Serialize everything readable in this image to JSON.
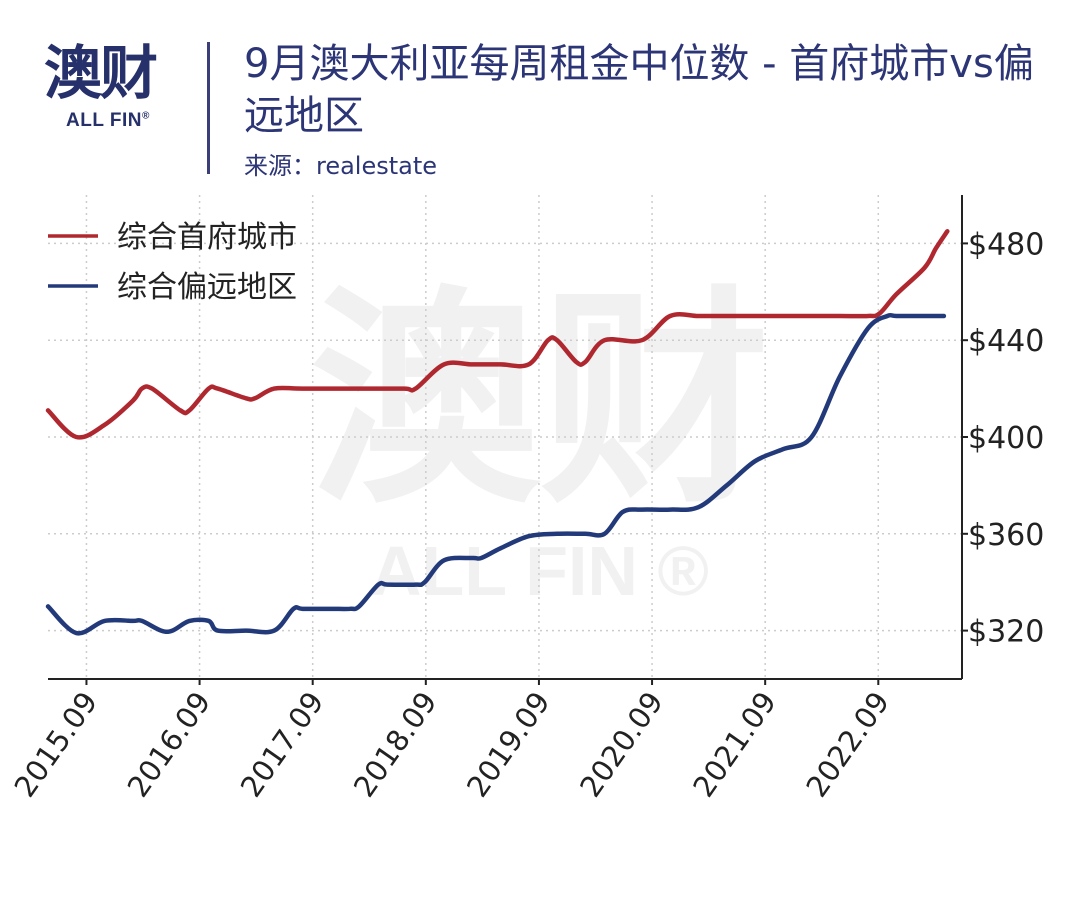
{
  "header": {
    "logo_text": "澳财",
    "logo_sub": "ALL FIN",
    "logo_reg": "®",
    "title": "9月澳大利亚每周租金中位数 - 首府城市vs偏远地区",
    "source": "来源：realestate"
  },
  "colors": {
    "capital": "#b0282f",
    "regional": "#233a7a",
    "brand": "#26306a",
    "grid": "#cccccc"
  },
  "chart_data": {
    "type": "line",
    "title": "9月澳大利亚每周租金中位数 - 首府城市vs偏远地区",
    "xlabel": "",
    "ylabel": "",
    "x_ticks": [
      "2015.09",
      "2016.09",
      "2017.09",
      "2018.09",
      "2019.09",
      "2020.09",
      "2021.09",
      "2022.09"
    ],
    "xlim": [
      2014.75,
      2022.83
    ],
    "ylim": [
      300,
      500
    ],
    "y_ticks": [
      320,
      360,
      400,
      440,
      480
    ],
    "y_tick_labels": [
      "$320",
      "$360",
      "$400",
      "$440",
      "$480"
    ],
    "y_axis_position": "right",
    "grid": true,
    "legend": "top-left",
    "series": [
      {
        "name": "综合首府城市",
        "color": "#b0282f",
        "points": [
          [
            2014.75,
            411
          ],
          [
            2015.0,
            400
          ],
          [
            2015.25,
            405
          ],
          [
            2015.5,
            415
          ],
          [
            2015.58,
            420
          ],
          [
            2015.67,
            420
          ],
          [
            2015.92,
            411
          ],
          [
            2016.0,
            411
          ],
          [
            2016.17,
            420
          ],
          [
            2016.25,
            420
          ],
          [
            2016.5,
            416
          ],
          [
            2016.58,
            416
          ],
          [
            2016.75,
            420
          ],
          [
            2017.0,
            420
          ],
          [
            2017.5,
            420
          ],
          [
            2017.9,
            420
          ],
          [
            2018.0,
            420
          ],
          [
            2018.25,
            430
          ],
          [
            2018.5,
            430
          ],
          [
            2018.75,
            430
          ],
          [
            2019.0,
            430
          ],
          [
            2019.17,
            440
          ],
          [
            2019.25,
            440
          ],
          [
            2019.42,
            431
          ],
          [
            2019.5,
            431
          ],
          [
            2019.67,
            440
          ],
          [
            2020.0,
            440
          ],
          [
            2020.25,
            450
          ],
          [
            2020.5,
            450
          ],
          [
            2020.75,
            450
          ],
          [
            2021.0,
            450
          ],
          [
            2021.5,
            450
          ],
          [
            2021.75,
            450
          ],
          [
            2022.0,
            450
          ],
          [
            2022.1,
            451
          ],
          [
            2022.25,
            459
          ],
          [
            2022.5,
            470
          ],
          [
            2022.6,
            478
          ],
          [
            2022.7,
            485
          ]
        ]
      },
      {
        "name": "综合偏远地区",
        "color": "#233a7a",
        "points": [
          [
            2014.75,
            330
          ],
          [
            2015.0,
            319
          ],
          [
            2015.25,
            324
          ],
          [
            2015.5,
            324
          ],
          [
            2015.58,
            324
          ],
          [
            2015.75,
            320
          ],
          [
            2015.85,
            320
          ],
          [
            2016.0,
            324
          ],
          [
            2016.17,
            324
          ],
          [
            2016.25,
            320
          ],
          [
            2016.5,
            320
          ],
          [
            2016.75,
            320
          ],
          [
            2016.92,
            329
          ],
          [
            2017.0,
            329
          ],
          [
            2017.25,
            329
          ],
          [
            2017.42,
            329
          ],
          [
            2017.5,
            330
          ],
          [
            2017.67,
            339
          ],
          [
            2017.75,
            339
          ],
          [
            2018.0,
            339
          ],
          [
            2018.08,
            340
          ],
          [
            2018.25,
            349
          ],
          [
            2018.5,
            350
          ],
          [
            2018.58,
            350
          ],
          [
            2018.75,
            354
          ],
          [
            2019.0,
            359
          ],
          [
            2019.25,
            360
          ],
          [
            2019.5,
            360
          ],
          [
            2019.67,
            360
          ],
          [
            2019.83,
            369
          ],
          [
            2020.0,
            370
          ],
          [
            2020.25,
            370
          ],
          [
            2020.5,
            371
          ],
          [
            2020.75,
            380
          ],
          [
            2021.0,
            390
          ],
          [
            2021.25,
            395
          ],
          [
            2021.5,
            400
          ],
          [
            2021.75,
            425
          ],
          [
            2022.0,
            445
          ],
          [
            2022.17,
            450
          ],
          [
            2022.25,
            450
          ],
          [
            2022.5,
            450
          ],
          [
            2022.67,
            450
          ]
        ]
      }
    ],
    "watermark_text": "澳财",
    "watermark_sub": "ALL FIN ®"
  }
}
